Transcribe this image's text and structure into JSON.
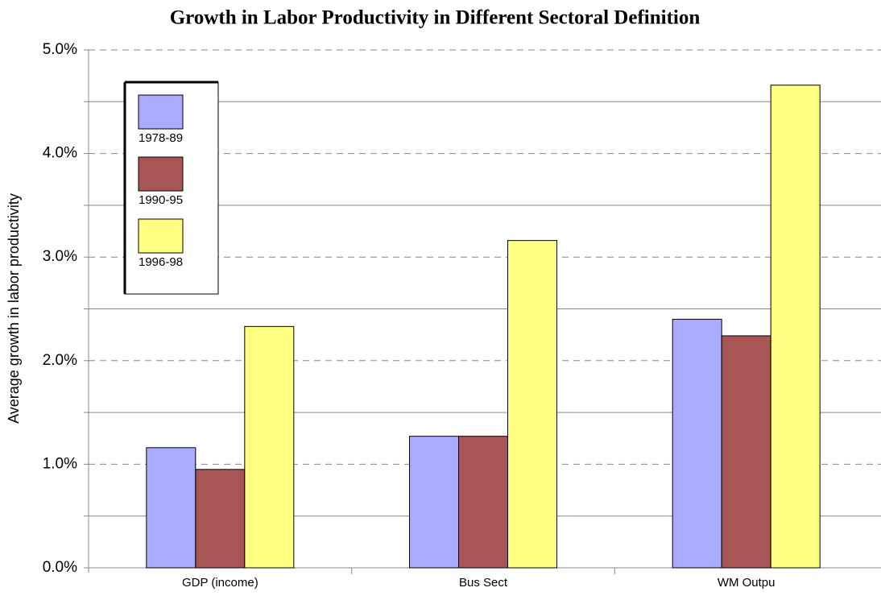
{
  "chart_data": {
    "type": "bar",
    "title": "Growth in Labor Productivity in Different Sectoral Definition",
    "y_label": "Average growth in labor productivity",
    "categories": [
      "GDP (income)",
      "Bus Sect",
      "WM Outpu"
    ],
    "series": [
      {
        "name": "1978-89",
        "color": "#aaaaff",
        "values": [
          1.16,
          1.27,
          2.4
        ]
      },
      {
        "name": "1990-95",
        "color": "#a85555",
        "values": [
          0.95,
          1.27,
          2.24
        ]
      },
      {
        "name": "1996-98",
        "color": "#ffff80",
        "values": [
          2.33,
          3.16,
          4.66
        ]
      }
    ],
    "ylim": [
      0,
      5
    ],
    "yticks": [
      {
        "value": 0,
        "label": "0.0%"
      },
      {
        "value": 1,
        "label": "1.0%"
      },
      {
        "value": 2,
        "label": "2.0%"
      },
      {
        "value": 3,
        "label": "3.0%"
      },
      {
        "value": 4,
        "label": "4.0%"
      },
      {
        "value": 5,
        "label": "5.0%"
      }
    ],
    "y_minor_ticks": [
      0.5,
      1.5,
      2.5,
      3.5,
      4.5
    ],
    "grid": true,
    "legend": "upper left"
  }
}
